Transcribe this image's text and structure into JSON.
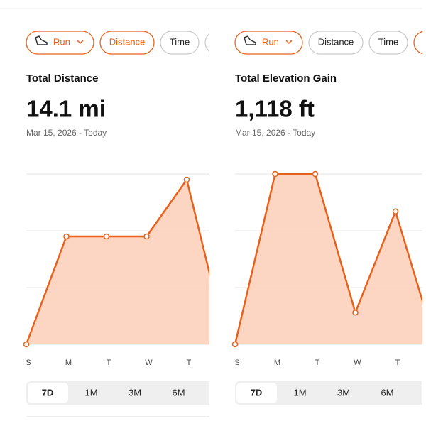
{
  "panels": [
    {
      "filters": [
        "Run",
        "Distance",
        "Time"
      ],
      "selected_filter": 1,
      "title": "Total Distance",
      "total": "14.1 mi",
      "date_range": "Mar 15, 2026 - Today",
      "chart": {
        "type": "area",
        "categories": [
          "S",
          "M",
          "T",
          "W",
          "T",
          null
        ],
        "values": [
          0,
          1.9,
          1.9,
          1.9,
          2.9,
          0
        ],
        "ylim": [
          0,
          3
        ],
        "yticks": [
          0,
          1,
          2,
          3
        ],
        "color": "#e8611a",
        "fill": "#fdd3c0"
      },
      "ranges": [
        "7D",
        "1M",
        "3M",
        "6M"
      ],
      "selected_range": 0
    },
    {
      "filters": [
        "Run",
        "Distance",
        "Time"
      ],
      "selected_filter": 0,
      "title": "Total Elevation Gain",
      "total": "1,118 ft",
      "date_range": "Mar 15, 2026 - Today",
      "chart": {
        "type": "area",
        "categories": [
          "S",
          "M",
          "T",
          "W",
          "T",
          null
        ],
        "values": [
          0,
          300,
          300,
          56,
          234,
          0
        ],
        "ylim": [
          0,
          300
        ],
        "yticks": [
          0,
          100,
          200,
          300
        ],
        "color": "#e8611a",
        "fill": "#fdd3c0"
      },
      "ranges": [
        "7D",
        "1M",
        "3M",
        "6M"
      ],
      "selected_range": 0
    }
  ]
}
